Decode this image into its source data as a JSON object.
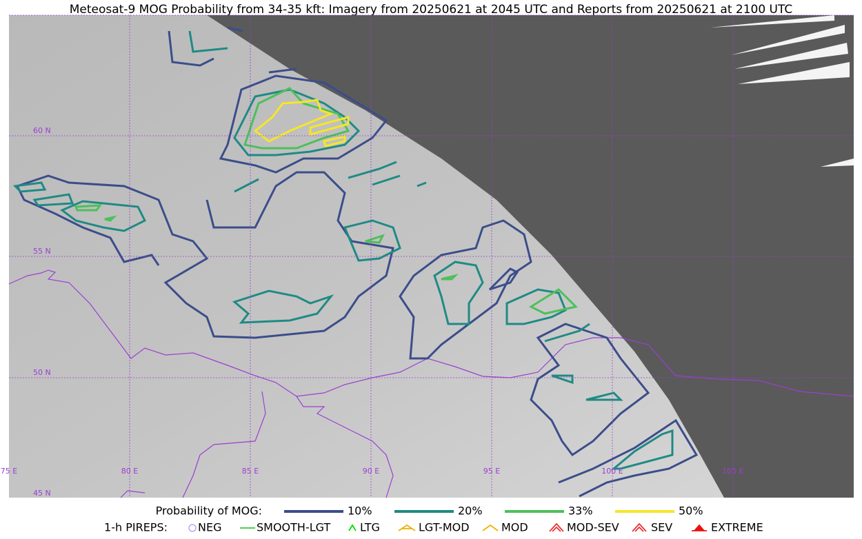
{
  "title": "Meteosat-9 MOG Probability from 34-35 kft: Imagery from 20250621 at 2045 UTC and Reports from 20250621 at 2100 UTC",
  "map": {
    "lat_labels": [
      "60 N",
      "55 N",
      "50 N",
      "45 N"
    ],
    "lon_labels": [
      "75 E",
      "80 E",
      "85 E",
      "90 E",
      "95 E",
      "100 E",
      "105 E"
    ]
  },
  "legend": {
    "title": "Probability of MOG:",
    "items": [
      {
        "label": "10%",
        "color": "#3b4d8a"
      },
      {
        "label": "20%",
        "color": "#1f8a84"
      },
      {
        "label": "33%",
        "color": "#4cc05a"
      },
      {
        "label": "50%",
        "color": "#f5e62a"
      }
    ]
  },
  "pireps": {
    "title": "1-h PIREPS:",
    "items": [
      {
        "label": "NEG",
        "color": "#b0b0f0"
      },
      {
        "label": "SMOOTH-LGT",
        "color": "#33cc33"
      },
      {
        "label": "LTG",
        "color": "#00dd00"
      },
      {
        "label": "LGT-MOD",
        "color": "#f0b000"
      },
      {
        "label": "MOD",
        "color": "#f0b000"
      },
      {
        "label": "MOD-SEV",
        "color": "#ee3030"
      },
      {
        "label": "SEV",
        "color": "#ee3030"
      },
      {
        "label": "EXTREME",
        "color": "#ee1010"
      }
    ]
  }
}
